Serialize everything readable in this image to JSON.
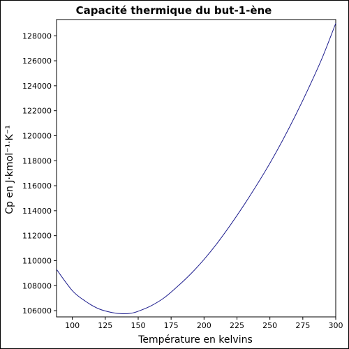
{
  "chart_data": {
    "type": "line",
    "title": "Capacité thermique du but-1-ène",
    "xlabel": "Température en kelvins",
    "ylabel": "Cp en J·kmol⁻¹·K⁻¹",
    "xlim": [
      88,
      300
    ],
    "ylim": [
      105500,
      129300
    ],
    "x_ticks": [
      100,
      125,
      150,
      175,
      200,
      225,
      250,
      275,
      300
    ],
    "y_ticks": [
      106000,
      108000,
      110000,
      112000,
      114000,
      116000,
      118000,
      120000,
      122000,
      124000,
      126000,
      128000
    ],
    "grid": false,
    "series": [
      {
        "color": "#1f1f8f",
        "x": [
          88,
          100,
          110,
          120,
          130,
          138,
          145,
          150,
          160,
          170,
          180,
          190,
          200,
          210,
          220,
          230,
          240,
          250,
          260,
          270,
          280,
          290,
          300
        ],
        "y": [
          109300,
          107600,
          106750,
          106150,
          105850,
          105750,
          105800,
          105950,
          106400,
          107050,
          107950,
          108950,
          110100,
          111400,
          112850,
          114400,
          116050,
          117800,
          119700,
          121750,
          123950,
          126300,
          129000
        ]
      }
    ]
  }
}
